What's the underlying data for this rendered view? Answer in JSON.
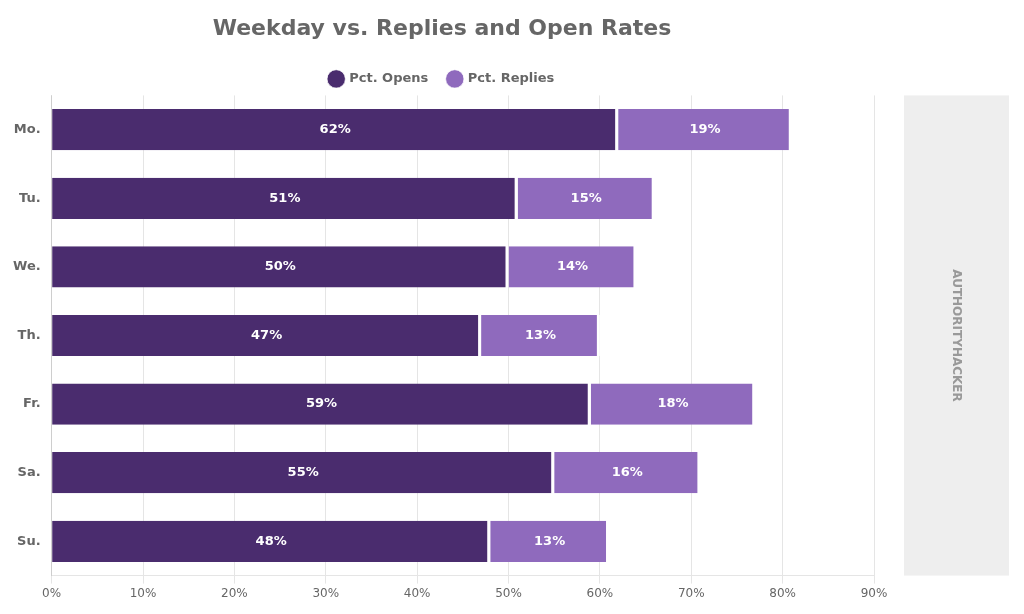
{
  "chart_data": {
    "type": "bar",
    "orientation": "horizontal",
    "stacked": true,
    "title": "Weekday vs. Replies and Open Rates",
    "categories": [
      "Mo.",
      "Tu.",
      "We.",
      "Th.",
      "Fr.",
      "Sa.",
      "Su."
    ],
    "series": [
      {
        "name": "Pct. Opens",
        "color": "#4a2c6e",
        "values": [
          62,
          51,
          50,
          47,
          59,
          55,
          48
        ],
        "value_labels": [
          "62%",
          "51%",
          "50%",
          "47%",
          "59%",
          "55%",
          "48%"
        ]
      },
      {
        "name": "Pct. Replies",
        "color": "#8f6abd",
        "values": [
          19,
          15,
          14,
          13,
          18,
          16,
          13
        ],
        "value_labels": [
          "19%",
          "15%",
          "14%",
          "13%",
          "18%",
          "16%",
          "13%"
        ]
      }
    ],
    "xlim": [
      0,
      90
    ],
    "xticks": [
      {
        "value": 0,
        "label": "0%"
      },
      {
        "value": 10,
        "label": "10%"
      },
      {
        "value": 20,
        "label": "20%"
      },
      {
        "value": 30,
        "label": "30%"
      },
      {
        "value": 40,
        "label": "40%"
      },
      {
        "value": 50,
        "label": "50%"
      },
      {
        "value": 60,
        "label": "60%"
      },
      {
        "value": 70,
        "label": "70%"
      },
      {
        "value": 80,
        "label": "80%"
      },
      {
        "value": 90,
        "label": "90%"
      }
    ],
    "grid": true,
    "legend": "top",
    "data_labels": true,
    "annotations": [
      {
        "text": "AUTHORITYHACKER"
      }
    ]
  }
}
